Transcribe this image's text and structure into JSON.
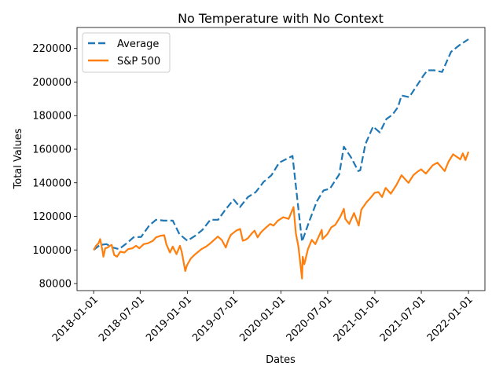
{
  "chart_data": {
    "type": "line",
    "title": "No Temperature with No Context",
    "xlabel": "Dates",
    "ylabel": "Total Values",
    "x_ticks": [
      "2018-01-01",
      "2018-07-01",
      "2019-01-01",
      "2019-07-01",
      "2020-01-01",
      "2020-07-01",
      "2021-01-01",
      "2021-07-01",
      "2022-01-01"
    ],
    "y_ticks": [
      80000,
      100000,
      120000,
      140000,
      160000,
      180000,
      200000,
      220000
    ],
    "xlim": [
      "2017-10-28",
      "2022-03-06"
    ],
    "ylim": [
      75800,
      232500
    ],
    "grid": false,
    "legend_position": "upper left",
    "series": [
      {
        "name": "Average",
        "color": "#1f77b4",
        "style": "dashed",
        "points": [
          [
            "2018-01-01",
            100000
          ],
          [
            "2018-01-25",
            103000
          ],
          [
            "2018-02-20",
            103500
          ],
          [
            "2018-03-15",
            101500
          ],
          [
            "2018-04-10",
            100500
          ],
          [
            "2018-05-10",
            104000
          ],
          [
            "2018-06-05",
            107500
          ],
          [
            "2018-07-05",
            107800
          ],
          [
            "2018-08-05",
            114500
          ],
          [
            "2018-09-01",
            118000
          ],
          [
            "2018-10-01",
            117500
          ],
          [
            "2018-11-05",
            117500
          ],
          [
            "2018-12-01",
            109500
          ],
          [
            "2019-01-01",
            105500
          ],
          [
            "2019-02-01",
            108500
          ],
          [
            "2019-03-01",
            112000
          ],
          [
            "2019-04-01",
            118000
          ],
          [
            "2019-05-01",
            118000
          ],
          [
            "2019-06-01",
            124500
          ],
          [
            "2019-07-01",
            130000
          ],
          [
            "2019-07-25",
            125500
          ],
          [
            "2019-08-25",
            131500
          ],
          [
            "2019-09-25",
            134500
          ],
          [
            "2019-10-25",
            140500
          ],
          [
            "2019-11-25",
            144500
          ],
          [
            "2019-12-25",
            152000
          ],
          [
            "2020-02-15",
            156000
          ],
          [
            "2020-03-23",
            105000
          ],
          [
            "2020-04-20",
            117000
          ],
          [
            "2020-05-20",
            129000
          ],
          [
            "2020-06-15",
            135500
          ],
          [
            "2020-07-10",
            136500
          ],
          [
            "2020-08-15",
            145000
          ],
          [
            "2020-09-02",
            161500
          ],
          [
            "2020-10-01",
            155000
          ],
          [
            "2020-10-28",
            147000
          ],
          [
            "2020-11-05",
            147500
          ],
          [
            "2020-11-25",
            163000
          ],
          [
            "2020-12-25",
            173500
          ],
          [
            "2021-01-20",
            170000
          ],
          [
            "2021-02-15",
            178000
          ],
          [
            "2021-03-10",
            180500
          ],
          [
            "2021-04-01",
            185000
          ],
          [
            "2021-04-15",
            192000
          ],
          [
            "2021-05-15",
            191000
          ],
          [
            "2021-06-10",
            197000
          ],
          [
            "2021-07-10",
            204000
          ],
          [
            "2021-07-25",
            207000
          ],
          [
            "2021-08-20",
            207000
          ],
          [
            "2021-09-20",
            206000
          ],
          [
            "2021-10-25",
            218000
          ],
          [
            "2021-12-01",
            222500
          ],
          [
            "2022-01-01",
            225500
          ]
        ]
      },
      {
        "name": "S&P 500",
        "color": "#ff7f0e",
        "style": "solid",
        "points": [
          [
            "2018-01-01",
            100000
          ],
          [
            "2018-01-10",
            102500
          ],
          [
            "2018-01-20",
            104000
          ],
          [
            "2018-01-26",
            106500
          ],
          [
            "2018-02-05",
            99000
          ],
          [
            "2018-02-08",
            96000
          ],
          [
            "2018-02-15",
            101000
          ],
          [
            "2018-02-25",
            101500
          ],
          [
            "2018-03-05",
            102500
          ],
          [
            "2018-03-12",
            103000
          ],
          [
            "2018-03-22",
            97000
          ],
          [
            "2018-04-02",
            96000
          ],
          [
            "2018-04-15",
            99000
          ],
          [
            "2018-05-01",
            98500
          ],
          [
            "2018-05-15",
            100500
          ],
          [
            "2018-06-01",
            101000
          ],
          [
            "2018-06-15",
            102500
          ],
          [
            "2018-06-28",
            101000
          ],
          [
            "2018-07-15",
            103500
          ],
          [
            "2018-08-01",
            104000
          ],
          [
            "2018-08-20",
            105500
          ],
          [
            "2018-09-01",
            107500
          ],
          [
            "2018-09-20",
            108500
          ],
          [
            "2018-10-03",
            108800
          ],
          [
            "2018-10-11",
            103500
          ],
          [
            "2018-10-25",
            98500
          ],
          [
            "2018-11-05",
            102000
          ],
          [
            "2018-11-20",
            97500
          ],
          [
            "2018-12-03",
            102500
          ],
          [
            "2018-12-10",
            99000
          ],
          [
            "2018-12-24",
            87500
          ],
          [
            "2018-12-31",
            91000
          ],
          [
            "2019-01-15",
            95000
          ],
          [
            "2019-02-01",
            97500
          ],
          [
            "2019-02-25",
            100500
          ],
          [
            "2019-03-15",
            102000
          ],
          [
            "2019-04-01",
            104000
          ],
          [
            "2019-04-30",
            108000
          ],
          [
            "2019-05-15",
            106000
          ],
          [
            "2019-05-31",
            101500
          ],
          [
            "2019-06-10",
            106000
          ],
          [
            "2019-06-20",
            109000
          ],
          [
            "2019-07-10",
            111500
          ],
          [
            "2019-07-26",
            112500
          ],
          [
            "2019-08-05",
            105500
          ],
          [
            "2019-08-15",
            106000
          ],
          [
            "2019-08-25",
            107000
          ],
          [
            "2019-09-10",
            110000
          ],
          [
            "2019-09-20",
            111500
          ],
          [
            "2019-10-02",
            107500
          ],
          [
            "2019-10-15",
            110500
          ],
          [
            "2019-11-01",
            113000
          ],
          [
            "2019-11-20",
            115500
          ],
          [
            "2019-12-03",
            114500
          ],
          [
            "2019-12-20",
            117500
          ],
          [
            "2020-01-10",
            119500
          ],
          [
            "2020-01-31",
            118500
          ],
          [
            "2020-02-19",
            125500
          ],
          [
            "2020-02-28",
            110000
          ],
          [
            "2020-03-09",
            102000
          ],
          [
            "2020-03-16",
            92500
          ],
          [
            "2020-03-23",
            83000
          ],
          [
            "2020-03-26",
            96000
          ],
          [
            "2020-04-01",
            91500
          ],
          [
            "2020-04-15",
            100500
          ],
          [
            "2020-04-30",
            106000
          ],
          [
            "2020-05-14",
            103500
          ],
          [
            "2020-06-08",
            112000
          ],
          [
            "2020-06-11",
            106500
          ],
          [
            "2020-06-30",
            109500
          ],
          [
            "2020-07-15",
            113500
          ],
          [
            "2020-07-31",
            115000
          ],
          [
            "2020-08-20",
            120000
          ],
          [
            "2020-09-02",
            124500
          ],
          [
            "2020-09-08",
            118500
          ],
          [
            "2020-09-23",
            115500
          ],
          [
            "2020-10-12",
            122000
          ],
          [
            "2020-10-30",
            114500
          ],
          [
            "2020-11-09",
            124000
          ],
          [
            "2020-11-30",
            128500
          ],
          [
            "2020-12-15",
            131000
          ],
          [
            "2020-12-31",
            134000
          ],
          [
            "2021-01-15",
            134500
          ],
          [
            "2021-01-29",
            131500
          ],
          [
            "2021-02-12",
            137000
          ],
          [
            "2021-03-04",
            133500
          ],
          [
            "2021-03-25",
            138500
          ],
          [
            "2021-04-15",
            144500
          ],
          [
            "2021-05-12",
            140000
          ],
          [
            "2021-05-31",
            144500
          ],
          [
            "2021-06-15",
            146500
          ],
          [
            "2021-06-30",
            148000
          ],
          [
            "2021-07-19",
            145500
          ],
          [
            "2021-08-15",
            150500
          ],
          [
            "2021-09-02",
            152000
          ],
          [
            "2021-09-30",
            147000
          ],
          [
            "2021-10-15",
            152500
          ],
          [
            "2021-11-02",
            157000
          ],
          [
            "2021-11-30",
            154000
          ],
          [
            "2021-12-10",
            157500
          ],
          [
            "2021-12-20",
            153500
          ],
          [
            "2022-01-01",
            158500
          ]
        ]
      }
    ]
  }
}
